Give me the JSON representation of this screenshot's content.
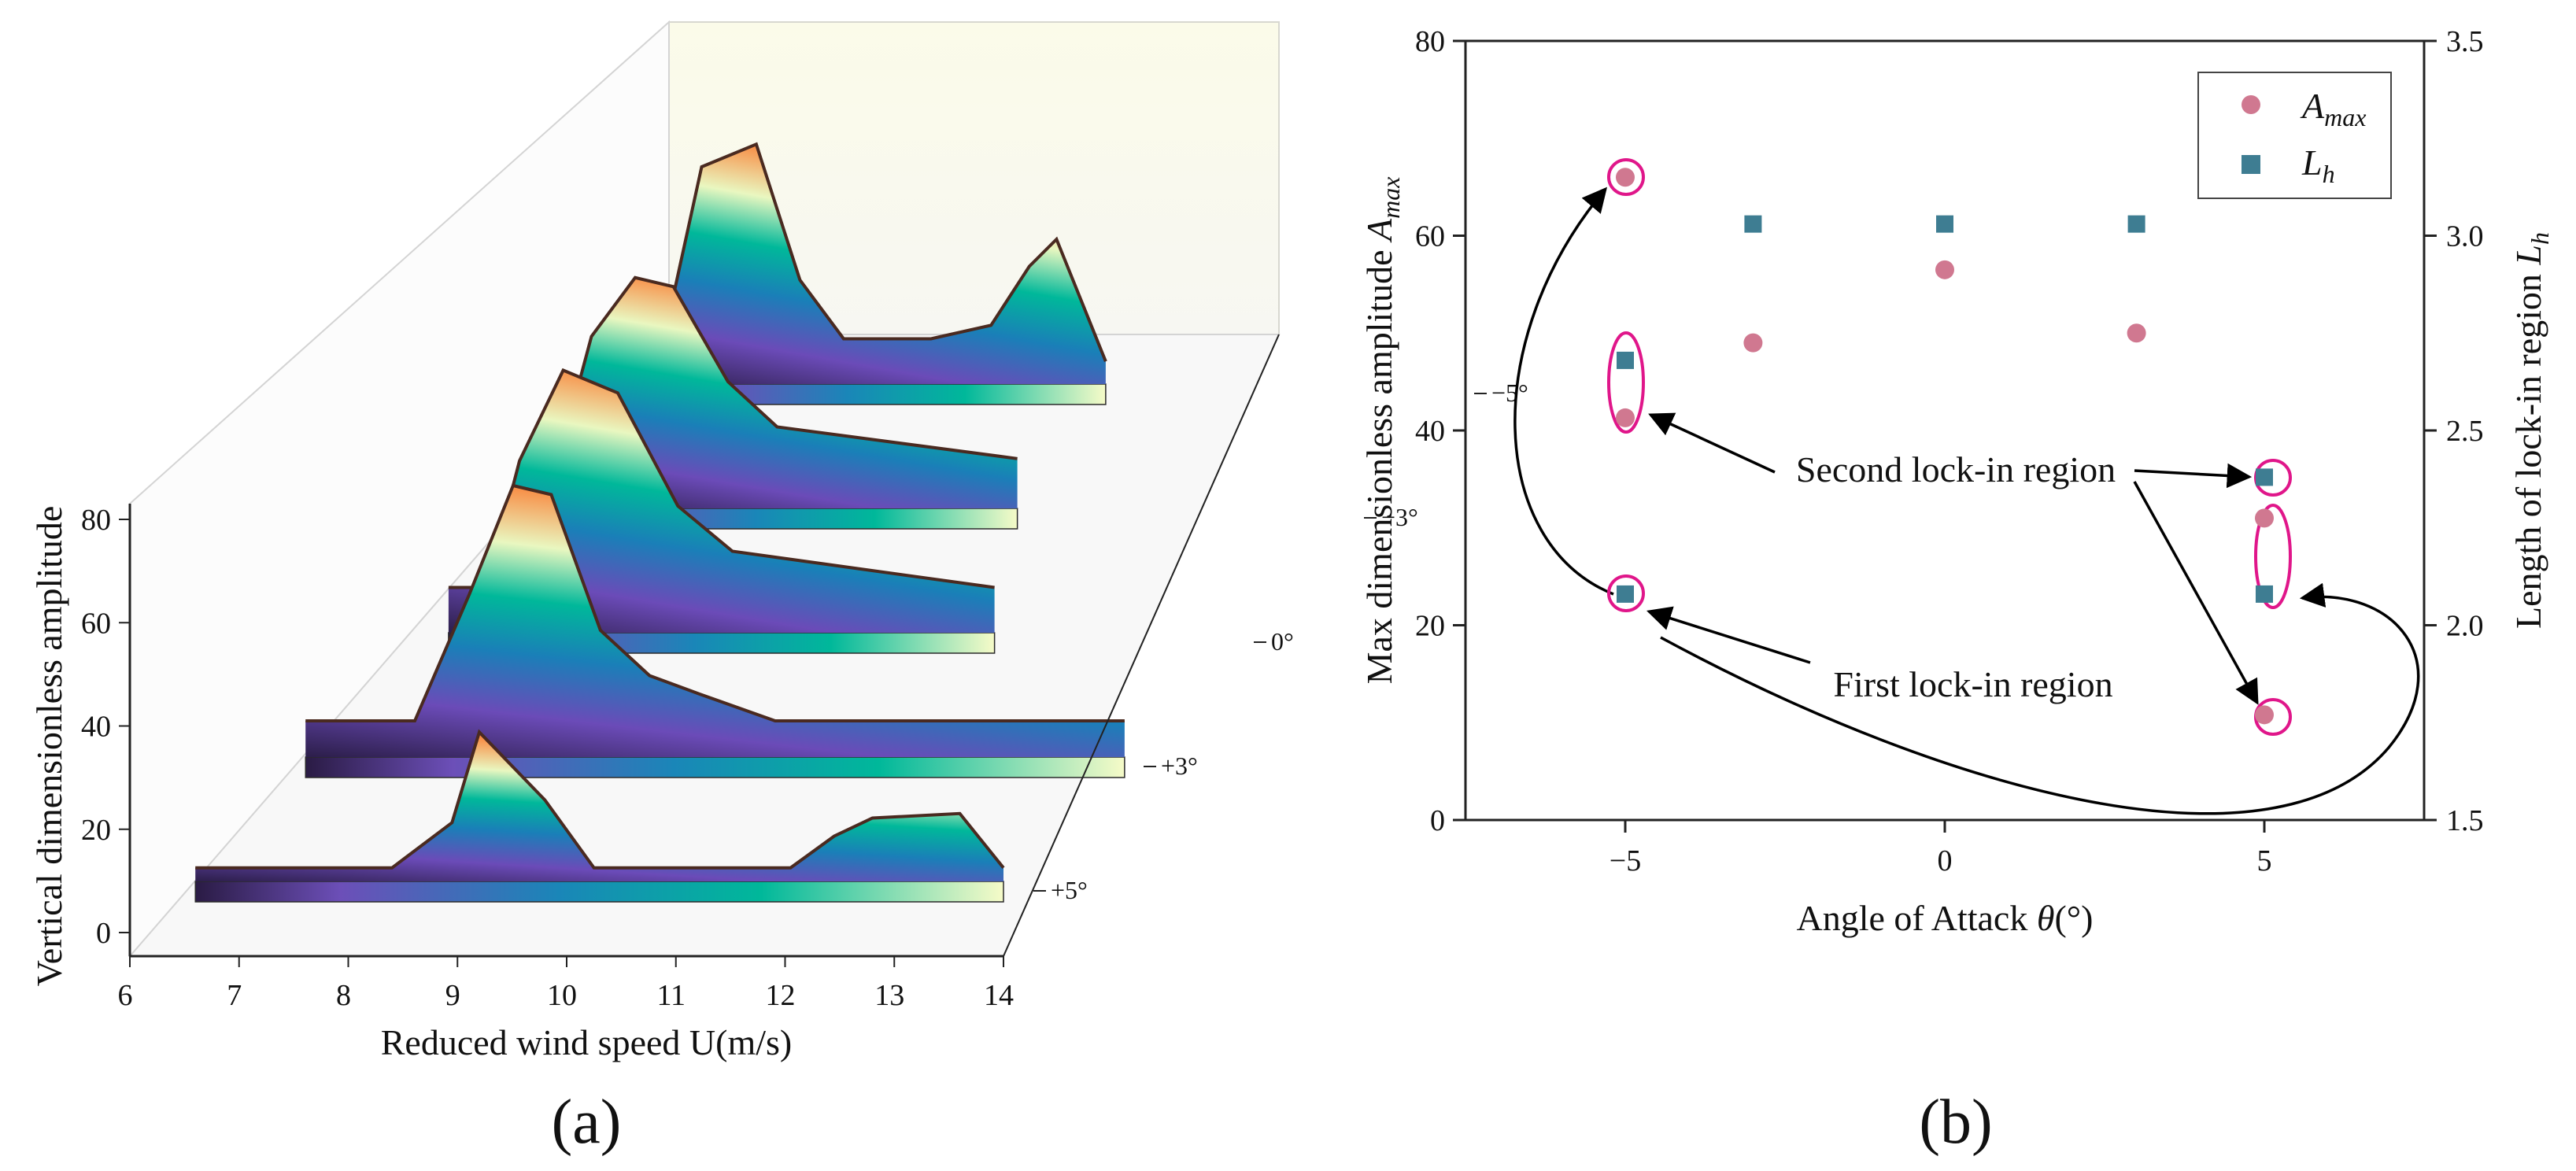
{
  "colors": {
    "pink_marker": "#d07890",
    "teal_marker": "#3e7d92",
    "highlight": "#e0168a",
    "ribbon_low": "#2c1e4a",
    "ribbon_mid": "#00b89a",
    "ribbon_high": "#fb7a2f"
  },
  "panels": {
    "a": {
      "label": "(a)"
    },
    "b": {
      "label": "(b)"
    }
  },
  "chart_data": [
    {
      "id": "a",
      "type": "area",
      "title": "",
      "xlabel": "Reduced wind speed U(m/s)",
      "ylabel": "Vertical dimensionless amplitude",
      "xlim": [
        6,
        14
      ],
      "ylim": [
        0,
        80
      ],
      "x_ticks": [
        "6",
        "7",
        "8",
        "9",
        "10",
        "11",
        "12",
        "13",
        "14"
      ],
      "y_ticks": [
        "0",
        "20",
        "40",
        "60",
        "80"
      ],
      "series": [
        {
          "name": "+5°",
          "x": [
            6.6,
            8.4,
            8.95,
            9.2,
            9.8,
            10.25,
            12.05,
            12.45,
            12.8,
            13.6,
            14.0
          ],
          "values": [
            15,
            15,
            25,
            45,
            30,
            15,
            15,
            22,
            26,
            27,
            15
          ]
        },
        {
          "name": "+3°",
          "x": [
            6.6,
            7.6,
            8.1,
            8.5,
            8.85,
            9.3,
            9.75,
            10.2,
            10.9,
            14.1
          ],
          "values": [
            20,
            20,
            48,
            72,
            70,
            40,
            30,
            26,
            20,
            20
          ]
        },
        {
          "name": "0°",
          "x": [
            6.9,
            7.25,
            7.55,
            7.95,
            8.45,
            9.0,
            9.5,
            11.9
          ],
          "values": [
            22,
            22,
            50,
            70,
            65,
            40,
            30,
            22
          ]
        },
        {
          "name": "−3°",
          "x": [
            6.75,
            6.9,
            7.2,
            7.6,
            7.95,
            8.45,
            8.9,
            11.1
          ],
          "values": [
            23,
            23,
            50,
            63,
            61,
            40,
            30,
            23
          ]
        },
        {
          "name": "−5°",
          "x": [
            6.6,
            6.8,
            7.2,
            7.7,
            8.1,
            8.5,
            9.3,
            9.85,
            10.2,
            10.45,
            10.9
          ],
          "values": [
            16,
            16,
            60,
            65,
            35,
            22,
            22,
            25,
            38,
            44,
            17
          ]
        }
      ]
    },
    {
      "id": "b",
      "type": "scatter",
      "title": "",
      "xlabel": "Angle of Attack θ(°)",
      "ylabel": "Max dimensionless amplitude A_max",
      "y2label": "Length of lock-in region L_h",
      "xlim": [
        -7.5,
        7.5
      ],
      "ylim": [
        0,
        80
      ],
      "y2lim": [
        1.5,
        3.5
      ],
      "x_ticks": [
        "−5",
        "0",
        "5"
      ],
      "y_ticks": [
        "0",
        "20",
        "40",
        "60",
        "80"
      ],
      "y2_ticks": [
        "1.5",
        "2.0",
        "2.5",
        "3.0",
        "3.5"
      ],
      "legend": {
        "position": "top-right",
        "a_base": "A",
        "a_sub": "max",
        "l_base": "L",
        "l_sub": "h"
      },
      "series": [
        {
          "name": "A_max",
          "axis": "left",
          "x": [
            -5,
            -5,
            -3,
            0,
            3,
            5,
            5
          ],
          "values": [
            66,
            41.3,
            49,
            56.5,
            50,
            31,
            10.8
          ]
        },
        {
          "name": "L_h",
          "axis": "right",
          "x": [
            -5,
            -5,
            -3,
            0,
            3,
            5,
            5
          ],
          "values": [
            2.08,
            2.68,
            3.03,
            3.03,
            3.03,
            2.38,
            2.08
          ]
        }
      ],
      "annotations": [
        "Second lock-in region",
        "First lock-in region"
      ]
    }
  ]
}
